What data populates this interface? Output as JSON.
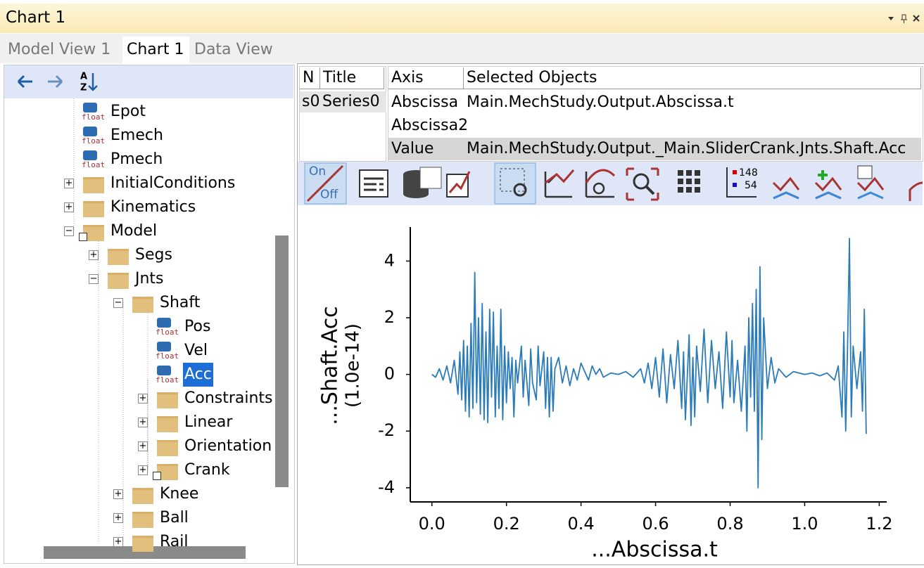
{
  "window": {
    "title": "Chart 1"
  },
  "tabs": [
    "Model View 1",
    "Chart 1",
    "Data View"
  ],
  "nav": {
    "sort_letters": [
      "A",
      "Z"
    ]
  },
  "tree": {
    "variable_icon_label": "float",
    "items": [
      "Epot",
      "Emech",
      "Pmech",
      "InitialConditions",
      "Kinematics",
      "Model",
      "Segs",
      "Jnts",
      "Shaft",
      "Pos",
      "Vel",
      "Acc",
      "Constraints",
      "Linear",
      "Orientation",
      "Crank",
      "Knee",
      "Ball",
      "Rail"
    ]
  },
  "series_table": {
    "headers": [
      "N",
      "Title"
    ],
    "rows": [
      [
        "s0",
        "Series0"
      ]
    ]
  },
  "axis_table": {
    "headers": [
      "Axis",
      "Selected Objects"
    ],
    "rows": [
      {
        "axis": "Abscissa",
        "selected": "Main.MechStudy.Output.Abscissa.t"
      },
      {
        "axis": "Abscissa2"
      },
      {
        "axis": "Value",
        "selected": "Main.MechStudy.Output._Main.SliderCrank.Jnts.Shaft.Acc"
      }
    ]
  },
  "toolbar": {
    "toggle_on": "On",
    "toggle_off": "Off",
    "legend_counts": [
      "148",
      "54"
    ]
  },
  "chart_data": {
    "type": "line",
    "xlabel": "...Abscissa.t",
    "ylabel": [
      "...Shaft.Acc",
      "(1.0e-14)"
    ],
    "xlim": [
      -0.058,
      1.22
    ],
    "ylim": [
      -4.5,
      5.2
    ],
    "xticks": [
      {
        "value": 0,
        "label": "0.0"
      },
      {
        "value": 0.2,
        "label": "0.2"
      },
      {
        "value": 0.4,
        "label": "0.4"
      },
      {
        "value": 0.6,
        "label": "0.6"
      },
      {
        "value": 0.8,
        "label": "0.8"
      },
      {
        "value": 1,
        "label": "1.0"
      },
      {
        "value": 1.2,
        "label": "1.2"
      }
    ],
    "yticks": [
      -4,
      -2,
      0,
      2,
      4
    ],
    "series": [
      {
        "name": "Series0",
        "color": "#2b7bb9",
        "x": [
          0,
          0.01,
          0.02,
          0.03,
          0.04,
          0.05,
          0.06,
          0.07,
          0.075,
          0.08,
          0.085,
          0.09,
          0.095,
          0.1,
          0.105,
          0.11,
          0.115,
          0.12,
          0.125,
          0.13,
          0.135,
          0.14,
          0.145,
          0.15,
          0.155,
          0.16,
          0.165,
          0.17,
          0.175,
          0.18,
          0.185,
          0.19,
          0.195,
          0.2,
          0.205,
          0.21,
          0.215,
          0.22,
          0.225,
          0.23,
          0.24,
          0.245,
          0.25,
          0.26,
          0.265,
          0.27,
          0.28,
          0.285,
          0.29,
          0.3,
          0.305,
          0.31,
          0.315,
          0.32,
          0.325,
          0.33,
          0.34,
          0.35,
          0.36,
          0.37,
          0.38,
          0.39,
          0.4,
          0.41,
          0.42,
          0.43,
          0.44,
          0.45,
          0.46,
          0.48,
          0.5,
          0.52,
          0.54,
          0.56,
          0.57,
          0.58,
          0.59,
          0.6,
          0.61,
          0.62,
          0.63,
          0.64,
          0.65,
          0.66,
          0.67,
          0.675,
          0.68,
          0.69,
          0.695,
          0.7,
          0.705,
          0.71,
          0.72,
          0.73,
          0.74,
          0.75,
          0.76,
          0.77,
          0.78,
          0.79,
          0.8,
          0.805,
          0.81,
          0.82,
          0.83,
          0.84,
          0.845,
          0.85,
          0.855,
          0.86,
          0.865,
          0.87,
          0.875,
          0.88,
          0.885,
          0.89,
          0.9,
          0.91,
          0.92,
          0.93,
          0.95,
          0.97,
          1,
          1.02,
          1.04,
          1.06,
          1.08,
          1.09,
          1.1,
          1.105,
          1.11,
          1.115,
          1.12,
          1.125,
          1.13,
          1.14,
          1.15,
          1.155,
          1.16,
          1.165
        ],
        "values": [
          0,
          -0.1,
          0.2,
          -0.2,
          0.3,
          -0.3,
          0.5,
          -0.7,
          0.8,
          -0.9,
          1.2,
          -1.3,
          1,
          -1.5,
          1.8,
          -1.2,
          3.6,
          -1,
          2,
          -1.4,
          2.5,
          -1.6,
          1.5,
          -1.7,
          2.3,
          -0.8,
          2.2,
          -1.5,
          1,
          -1.2,
          2.3,
          -1.6,
          1,
          -1,
          0.8,
          -0.5,
          0.6,
          -1.5,
          0.5,
          -0.3,
          1,
          -0.8,
          0.5,
          -1.1,
          0.9,
          -0.3,
          -0.9,
          1,
          -0.4,
          0.8,
          -1.2,
          0.6,
          -1.5,
          0.6,
          -1.3,
          0.2,
          0.6,
          -0.3,
          0.3,
          -0.4,
          0.2,
          -0.2,
          0.4,
          0.1,
          -0.2,
          0.3,
          0,
          0.2,
          -0.1,
          0.05,
          0,
          0.1,
          -0.1,
          0.2,
          -0.3,
          0.4,
          -0.5,
          0.6,
          -0.8,
          0.9,
          -1,
          0.7,
          -0.5,
          1.2,
          -1.2,
          0.8,
          -1.6,
          1.4,
          -1.8,
          0.6,
          -1.5,
          1,
          -0.6,
          1.6,
          -1,
          1.2,
          -0.5,
          0.8,
          -1.2,
          1.5,
          -0.8,
          1.2,
          -1,
          0.5,
          -1.3,
          1,
          -2,
          2,
          -0.8,
          2.5,
          -1.3,
          3,
          -4,
          3.8,
          -2.3,
          2,
          -0.5,
          0.6,
          -0.3,
          0.2,
          -0.1,
          0.1,
          0,
          0.05,
          -0.05,
          0.05,
          -0.2,
          0.3,
          -1.5,
          1.5,
          -2,
          1,
          4.8,
          -1.5,
          1,
          -0.5,
          0.8,
          -1.3,
          2.3,
          -2.1
        ]
      }
    ]
  }
}
